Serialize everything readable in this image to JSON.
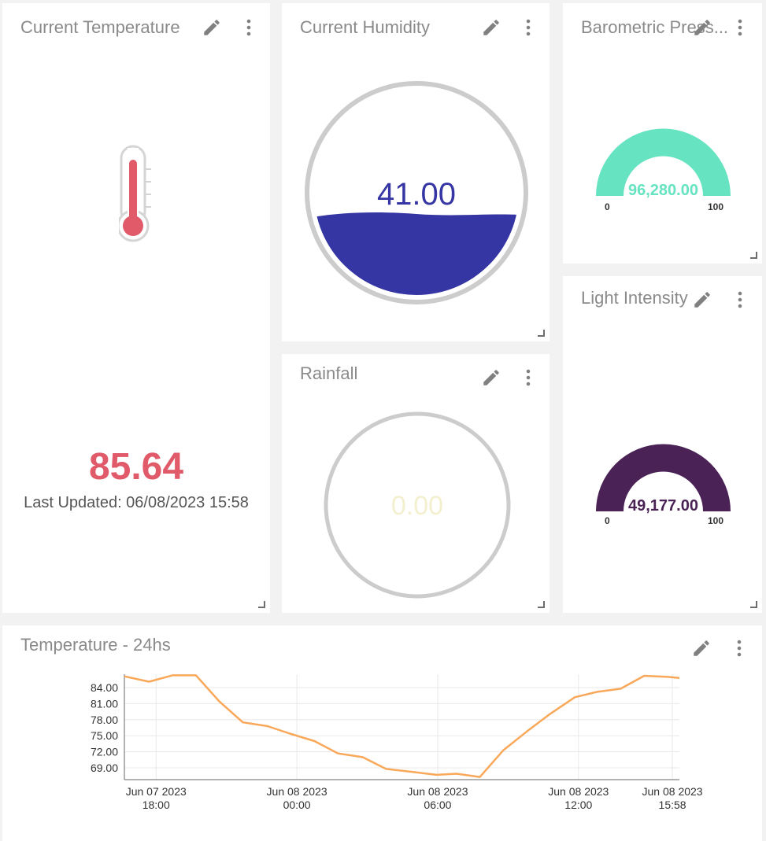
{
  "widgets": {
    "temperature": {
      "title": "Current Temperature",
      "value": "85.64",
      "last_updated": "Last Updated: 06/08/2023 15:58",
      "color": "#e05a6a"
    },
    "humidity": {
      "title": "Current Humidity",
      "value": "41.00",
      "fill_fraction": 0.41,
      "color": "#3536a3"
    },
    "pressure": {
      "title": "Barometric Press...",
      "value": "96,280.00",
      "min_label": "0",
      "max_label": "100",
      "color": "#66e3c0"
    },
    "rainfall": {
      "title": "Rainfall",
      "value": "0.00",
      "color": "#f3f0cf"
    },
    "light": {
      "title": "Light Intensity",
      "value": "49,177.00",
      "min_label": "0",
      "max_label": "100",
      "color": "#4a2255"
    }
  },
  "icons": {
    "edit": "pencil-icon",
    "menu": "kebab-menu-icon",
    "resize": "resize-handle-icon"
  },
  "chart_card": {
    "title": "Temperature - 24hs"
  },
  "chart_data": {
    "type": "line",
    "color": "#f9a85a",
    "ylim": [
      66.8,
      86.5
    ],
    "y_ticks": [
      69,
      72,
      75,
      78,
      81,
      84
    ],
    "y_tick_labels": [
      "69.00",
      "72.00",
      "75.00",
      "78.00",
      "81.00",
      "84.00"
    ],
    "x_range_hours": [
      -23.35,
      0.3
    ],
    "x_ticks": [
      {
        "hour": -22,
        "line1": "Jun 07 2023",
        "line2": "18:00"
      },
      {
        "hour": -16,
        "line1": "Jun 08 2023",
        "line2": "00:00"
      },
      {
        "hour": -10,
        "line1": "Jun 08 2023",
        "line2": "06:00"
      },
      {
        "hour": -4,
        "line1": "Jun 08 2023",
        "line2": "12:00"
      },
      {
        "hour": 0,
        "line1": "Jun 08 2023",
        "line2": "15:58"
      }
    ],
    "grid": true,
    "series": [
      {
        "hours": [
          -23.35,
          -22.3,
          -21.3,
          -20.3,
          -19.3,
          -18.3,
          -17.25,
          -16.3,
          -15.25,
          -14.25,
          -13.2,
          -12.2,
          -11.2,
          -10.05,
          -9.2,
          -8.2,
          -7.2,
          -6.2,
          -5.2,
          -4.15,
          -3.2,
          -2.2,
          -1.2,
          -0.2,
          0.3
        ],
        "values": [
          86.1,
          85.1,
          86.3,
          86.3,
          81.4,
          77.5,
          76.8,
          75.4,
          74.0,
          71.7,
          71.0,
          68.8,
          68.3,
          67.7,
          67.9,
          67.3,
          72.3,
          75.8,
          79.1,
          82.2,
          83.2,
          83.8,
          86.2,
          86.0,
          85.8
        ]
      }
    ]
  }
}
